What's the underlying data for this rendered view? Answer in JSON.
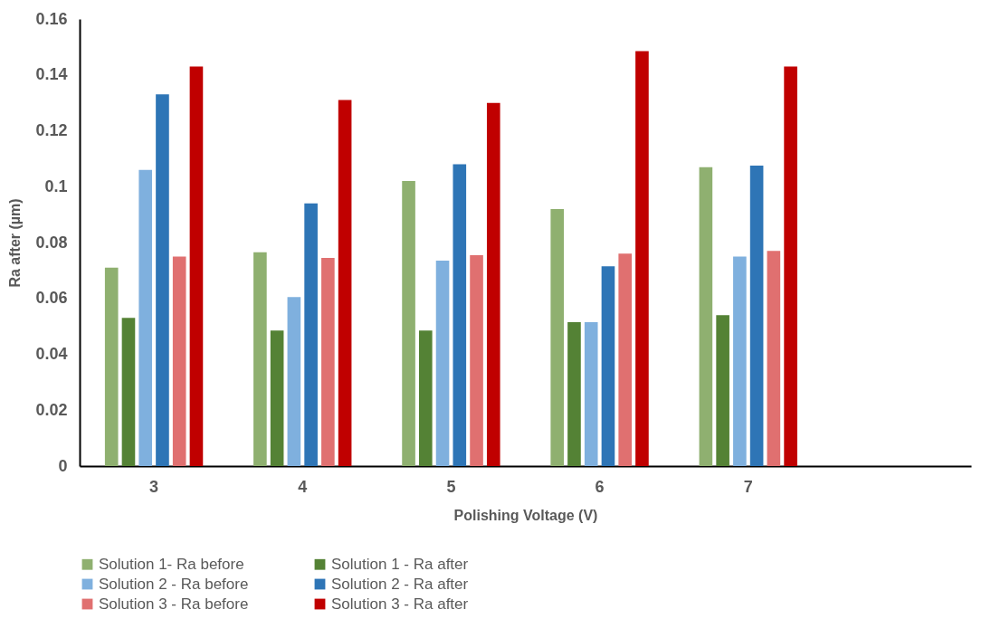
{
  "chart_data": {
    "type": "bar",
    "xlabel": "Polishing Voltage (V)",
    "ylabel": "Ra after (µm)",
    "categories": [
      "3",
      "4",
      "5",
      "6",
      "7",
      null
    ],
    "ylim": [
      0,
      0.16
    ],
    "yticks": [
      0,
      0.02,
      0.04,
      0.06,
      0.08,
      {
        "value": 0.1,
        "label": "0.1"
      },
      0.12,
      0.14,
      0.16
    ],
    "grid": false,
    "legend": "bottom",
    "series": [
      {
        "name": "Solution 1- Ra before",
        "color": "#8fb070",
        "values": [
          0.071,
          0.0765,
          0.102,
          0.092,
          0.107,
          null
        ]
      },
      {
        "name": "Solution 1 - Ra after",
        "color": "#548235",
        "values": [
          0.053,
          0.0485,
          0.0485,
          0.0515,
          0.054,
          null
        ]
      },
      {
        "name": "Solution 2 - Ra before",
        "color": "#7fb0de",
        "values": [
          0.106,
          0.0605,
          0.0735,
          0.0515,
          0.075,
          null
        ]
      },
      {
        "name": "Solution 2 - Ra after",
        "color": "#2e75b6",
        "values": [
          0.133,
          0.094,
          0.108,
          0.0715,
          0.1075,
          null
        ]
      },
      {
        "name": "Solution 3 - Ra before",
        "color": "#e07070",
        "values": [
          0.075,
          0.0745,
          0.0755,
          0.076,
          0.077,
          null
        ]
      },
      {
        "name": "Solution 3 - Ra after",
        "color": "#c00000",
        "values": [
          0.143,
          0.131,
          0.13,
          0.1485,
          0.143,
          null
        ]
      }
    ]
  }
}
